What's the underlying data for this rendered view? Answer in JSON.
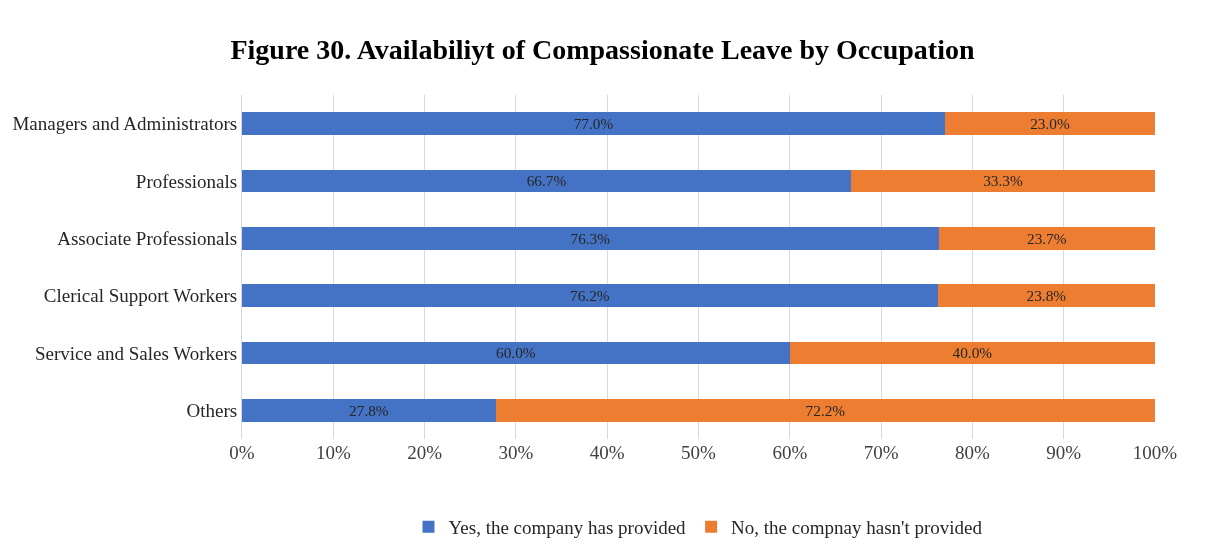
{
  "chart_data": {
    "type": "bar",
    "title": "Figure 30. Availabiliyt of Compassionate Leave by Occupation",
    "orientation": "horizontal",
    "stacked": true,
    "categories": [
      "Managers and Administrators",
      "Professionals",
      "Associate Professionals",
      "Clerical Support Workers",
      "Service and Sales Workers",
      "Others"
    ],
    "series": [
      {
        "name": "Yes, the company has provided",
        "color": "#4472c4",
        "values": [
          77.0,
          66.7,
          76.3,
          76.2,
          60.0,
          27.8
        ],
        "value_labels": [
          "77.0%",
          "66.7%",
          "76.3%",
          "76.2%",
          "60.0%",
          "27.8%"
        ]
      },
      {
        "name": "No, the compnay hasn't provided",
        "color": "#ed7d31",
        "values": [
          23.0,
          33.3,
          23.7,
          23.8,
          40.0,
          72.2
        ],
        "value_labels": [
          "23.0%",
          "33.3%",
          "23.7%",
          "23.8%",
          "40.0%",
          "72.2%"
        ]
      }
    ],
    "xlim": [
      0,
      100
    ],
    "xticks": [
      {
        "value": 0,
        "label": "0%"
      },
      {
        "value": 10,
        "label": "10%"
      },
      {
        "value": 20,
        "label": "20%"
      },
      {
        "value": 30,
        "label": "30%"
      },
      {
        "value": 40,
        "label": "40%"
      },
      {
        "value": 50,
        "label": "50%"
      },
      {
        "value": 60,
        "label": "60%"
      },
      {
        "value": 70,
        "label": "70%"
      },
      {
        "value": 80,
        "label": "80%"
      },
      {
        "value": 90,
        "label": "90%"
      },
      {
        "value": 100,
        "label": "100%"
      }
    ],
    "grid": "x",
    "legend": "bottom"
  }
}
